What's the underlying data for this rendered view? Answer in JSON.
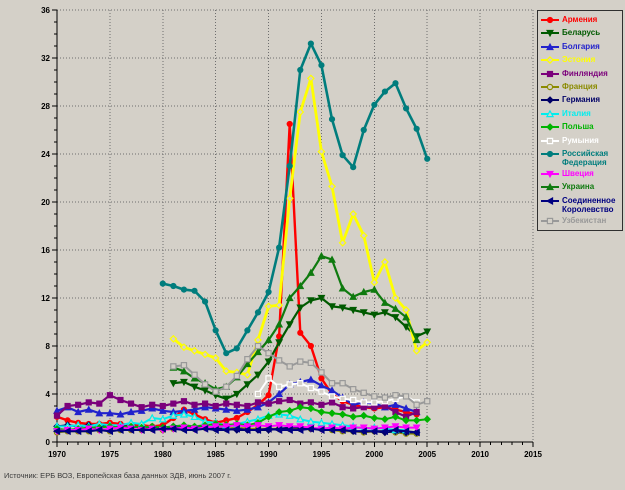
{
  "source_note": "Источник: ЕРБ ВОЗ, Европейская база данных ЗДВ, июнь 2007 г.",
  "colors": {
    "background": "#d4d0c8",
    "grid": "#6e6e6e",
    "axis": "#000000",
    "tick_text": "#000000"
  },
  "chart_data": {
    "type": "line",
    "title": "",
    "xlabel": "",
    "ylabel": "",
    "grid": "dotted, both axes, at major ticks",
    "legend_position": "top-right",
    "x_axis": {
      "min": 1970,
      "max": 2015,
      "major_step": 5,
      "minor_step": 1,
      "tick_labels": [
        "1970",
        "1975",
        "1980",
        "1985",
        "1990",
        "1995",
        "2000",
        "2005",
        "2010",
        "2015"
      ]
    },
    "y_axis": {
      "min": 0,
      "max": 36,
      "major_step": 4,
      "minor_step": 1,
      "tick_labels": [
        "0",
        "4",
        "8",
        "12",
        "16",
        "20",
        "24",
        "28",
        "32",
        "36"
      ]
    },
    "series": [
      {
        "name": "Армения",
        "color": "#ff0000",
        "marker": "circle",
        "fill": "solid",
        "width": 2.4,
        "start_year": 1970,
        "values": [
          2.1,
          1.8,
          1.6,
          1.5,
          1.5,
          1.6,
          1.5,
          1.4,
          1.4,
          1.3,
          1.4,
          2.0,
          2.7,
          2.3,
          1.9,
          1.6,
          1.8,
          2.0,
          2.5,
          3.1,
          3.9,
          8.8,
          26.5,
          9.1,
          8.0,
          5.3,
          4.0,
          3.4,
          3.1,
          2.9,
          2.8,
          2.9,
          2.7,
          2.5,
          2.3
        ]
      },
      {
        "name": "Беларусь",
        "color": "#005a00",
        "marker": "triangle-down",
        "fill": "solid",
        "width": 2.2,
        "start_year": 1981,
        "values": [
          4.9,
          5.0,
          4.6,
          4.3,
          3.9,
          3.6,
          4.0,
          4.8,
          5.6,
          6.7,
          8.3,
          9.8,
          11.2,
          11.8,
          12.0,
          11.3,
          11.2,
          11.0,
          10.8,
          10.6,
          10.8,
          10.4,
          9.6,
          8.8,
          9.2
        ]
      },
      {
        "name": "Болгария",
        "color": "#2222cc",
        "marker": "triangle-up",
        "fill": "solid",
        "width": 2.2,
        "start_year": 1970,
        "values": [
          2.6,
          2.9,
          2.5,
          2.7,
          2.4,
          2.4,
          2.3,
          2.5,
          2.6,
          2.8,
          2.6,
          2.5,
          2.6,
          2.7,
          2.9,
          2.8,
          2.7,
          2.6,
          2.7,
          2.9,
          3.3,
          4.0,
          4.8,
          5.0,
          5.2,
          4.7,
          4.3,
          3.7,
          3.1,
          3.3,
          3.2,
          2.9,
          3.1,
          2.8,
          2.5
        ]
      },
      {
        "name": "Эстония",
        "color": "#ffff00",
        "marker": "diamond",
        "fill": "open",
        "width": 2.8,
        "start_year": 1981,
        "values": [
          8.6,
          7.9,
          7.6,
          7.3,
          7.0,
          5.9,
          5.8,
          5.6,
          8.5,
          11.3,
          11.4,
          20.3,
          27.5,
          30.3,
          24.2,
          21.3,
          16.6,
          19.0,
          17.2,
          13.3,
          15.0,
          12.0,
          11.0,
          7.6,
          8.3
        ]
      },
      {
        "name": "Финляндия",
        "color": "#7b007b",
        "marker": "square",
        "fill": "solid",
        "width": 2.2,
        "start_year": 1970,
        "values": [
          2.2,
          3.0,
          3.1,
          3.3,
          3.2,
          3.9,
          3.5,
          3.2,
          2.9,
          3.1,
          3.0,
          3.2,
          3.4,
          3.1,
          3.2,
          3.0,
          3.2,
          3.1,
          3.0,
          3.3,
          3.2,
          3.4,
          3.5,
          3.2,
          3.3,
          3.1,
          3.3,
          2.9,
          2.8,
          2.9,
          2.9,
          3.0,
          2.5,
          2.1,
          2.5
        ]
      },
      {
        "name": "Франция",
        "color": "#8b8b00",
        "marker": "circle",
        "fill": "open",
        "width": 2.0,
        "start_year": 1970,
        "values": [
          0.8,
          0.9,
          0.9,
          0.9,
          1.0,
          0.9,
          1.0,
          1.0,
          1.0,
          1.1,
          1.0,
          1.1,
          1.1,
          1.1,
          1.2,
          1.1,
          1.1,
          1.2,
          1.1,
          1.1,
          1.1,
          1.1,
          1.1,
          1.1,
          1.1,
          1.1,
          1.0,
          0.9,
          0.9,
          0.8,
          0.9,
          0.9,
          0.8,
          0.7,
          0.7
        ]
      },
      {
        "name": "Германия",
        "color": "#000066",
        "marker": "diamond",
        "fill": "solid",
        "width": 2.0,
        "start_year": 1970,
        "values": [
          1.3,
          1.4,
          1.3,
          1.4,
          1.4,
          1.3,
          1.3,
          1.3,
          1.2,
          1.2,
          1.2,
          1.3,
          1.2,
          1.2,
          1.2,
          1.1,
          1.1,
          1.0,
          1.0,
          1.0,
          1.0,
          1.1,
          1.2,
          1.2,
          1.1,
          1.1,
          1.1,
          1.0,
          0.9,
          0.9,
          0.9,
          0.8,
          0.9,
          0.8,
          0.8
        ]
      },
      {
        "name": "Италия",
        "color": "#00eeee",
        "marker": "triangle-up",
        "fill": "open",
        "width": 2.0,
        "start_year": 1970,
        "values": [
          1.3,
          1.3,
          1.4,
          1.3,
          1.5,
          1.4,
          1.4,
          1.6,
          1.5,
          2.0,
          1.9,
          2.2,
          2.3,
          2.1,
          1.7,
          1.6,
          1.4,
          1.5,
          1.7,
          1.9,
          2.2,
          2.3,
          2.2,
          1.9,
          1.7,
          1.6,
          1.5,
          1.4,
          1.3,
          1.1,
          1.2,
          1.1,
          1.0,
          1.0
        ]
      },
      {
        "name": "Польша",
        "color": "#00b400",
        "marker": "diamond",
        "fill": "solid",
        "width": 2.0,
        "start_year": 1970,
        "values": [
          1.1,
          1.0,
          1.1,
          1.2,
          1.2,
          1.3,
          1.2,
          1.3,
          1.2,
          1.3,
          1.2,
          1.3,
          1.4,
          1.3,
          1.4,
          1.5,
          1.4,
          1.5,
          1.4,
          1.6,
          2.1,
          2.5,
          2.6,
          2.9,
          2.8,
          2.5,
          2.4,
          2.3,
          2.1,
          2.2,
          2.0,
          1.9,
          2.1,
          1.8,
          1.8,
          1.9
        ]
      },
      {
        "name": "Румыния",
        "color": "#ffffff",
        "marker": "square",
        "fill": "open",
        "width": 2.0,
        "start_year": 1989,
        "values": [
          4.0,
          5.3,
          4.6,
          4.8,
          4.9,
          4.5,
          4.2,
          3.8,
          3.6,
          3.5,
          3.3,
          3.3,
          3.4,
          3.6,
          3.8,
          3.3
        ]
      },
      {
        "name": "Российская Федерация",
        "color": "#007d7d",
        "marker": "circle",
        "fill": "solid",
        "width": 2.6,
        "start_year": 1980,
        "values": [
          13.2,
          13.0,
          12.7,
          12.6,
          11.7,
          9.3,
          7.4,
          7.8,
          9.3,
          10.8,
          12.5,
          16.2,
          23.0,
          31.0,
          33.2,
          31.4,
          26.9,
          23.9,
          22.9,
          26.0,
          28.1,
          29.2,
          29.9,
          27.8,
          26.1,
          23.6
        ]
      },
      {
        "name": "Швеция",
        "color": "#ff00ff",
        "marker": "triangle-down",
        "fill": "solid",
        "width": 2.0,
        "start_year": 1970,
        "values": [
          0.9,
          1.0,
          1.0,
          1.1,
          1.0,
          1.1,
          1.2,
          1.1,
          1.0,
          1.1,
          1.0,
          1.1,
          1.2,
          1.1,
          1.2,
          1.3,
          1.3,
          1.4,
          1.3,
          1.4,
          1.3,
          1.4,
          1.3,
          1.3,
          1.2,
          1.1,
          1.2,
          1.1,
          1.2,
          1.2,
          1.1,
          1.2,
          1.3,
          1.2,
          1.2
        ]
      },
      {
        "name": "Украина",
        "color": "#0f7a0f",
        "marker": "triangle-up",
        "fill": "solid",
        "width": 2.2,
        "start_year": 1981,
        "values": [
          6.2,
          5.9,
          5.3,
          4.9,
          4.4,
          4.6,
          5.4,
          6.5,
          7.5,
          8.5,
          9.8,
          12.0,
          13.0,
          14.1,
          15.5,
          15.2,
          12.8,
          12.1,
          12.5,
          12.7,
          11.6,
          11.1,
          10.4,
          8.5
        ]
      },
      {
        "name": "Соединенное Королевство",
        "color": "#000080",
        "marker": "triangle-left",
        "fill": "solid",
        "width": 2.0,
        "start_year": 1970,
        "values": [
          0.9,
          0.9,
          0.9,
          0.9,
          1.0,
          0.9,
          1.0,
          1.0,
          1.0,
          1.0,
          1.1,
          1.1,
          1.0,
          1.0,
          1.1,
          1.0,
          1.0,
          1.1,
          1.0,
          1.0,
          1.1,
          1.0,
          1.0,
          1.0,
          1.1,
          1.0,
          1.0,
          1.0,
          0.9,
          0.9,
          0.9,
          0.9,
          1.0,
          0.9,
          0.8
        ]
      },
      {
        "name": "Узбекистан",
        "color": "#999999",
        "marker": "square",
        "fill": "open",
        "width": 2.0,
        "start_year": 1981,
        "values": [
          6.3,
          6.4,
          5.6,
          4.8,
          4.2,
          4.6,
          5.5,
          6.9,
          8.0,
          7.4,
          6.8,
          6.3,
          6.7,
          6.6,
          5.8,
          4.9,
          4.9,
          4.4,
          4.1,
          3.8,
          3.7,
          3.9,
          3.8,
          3.1,
          3.4
        ]
      }
    ]
  }
}
